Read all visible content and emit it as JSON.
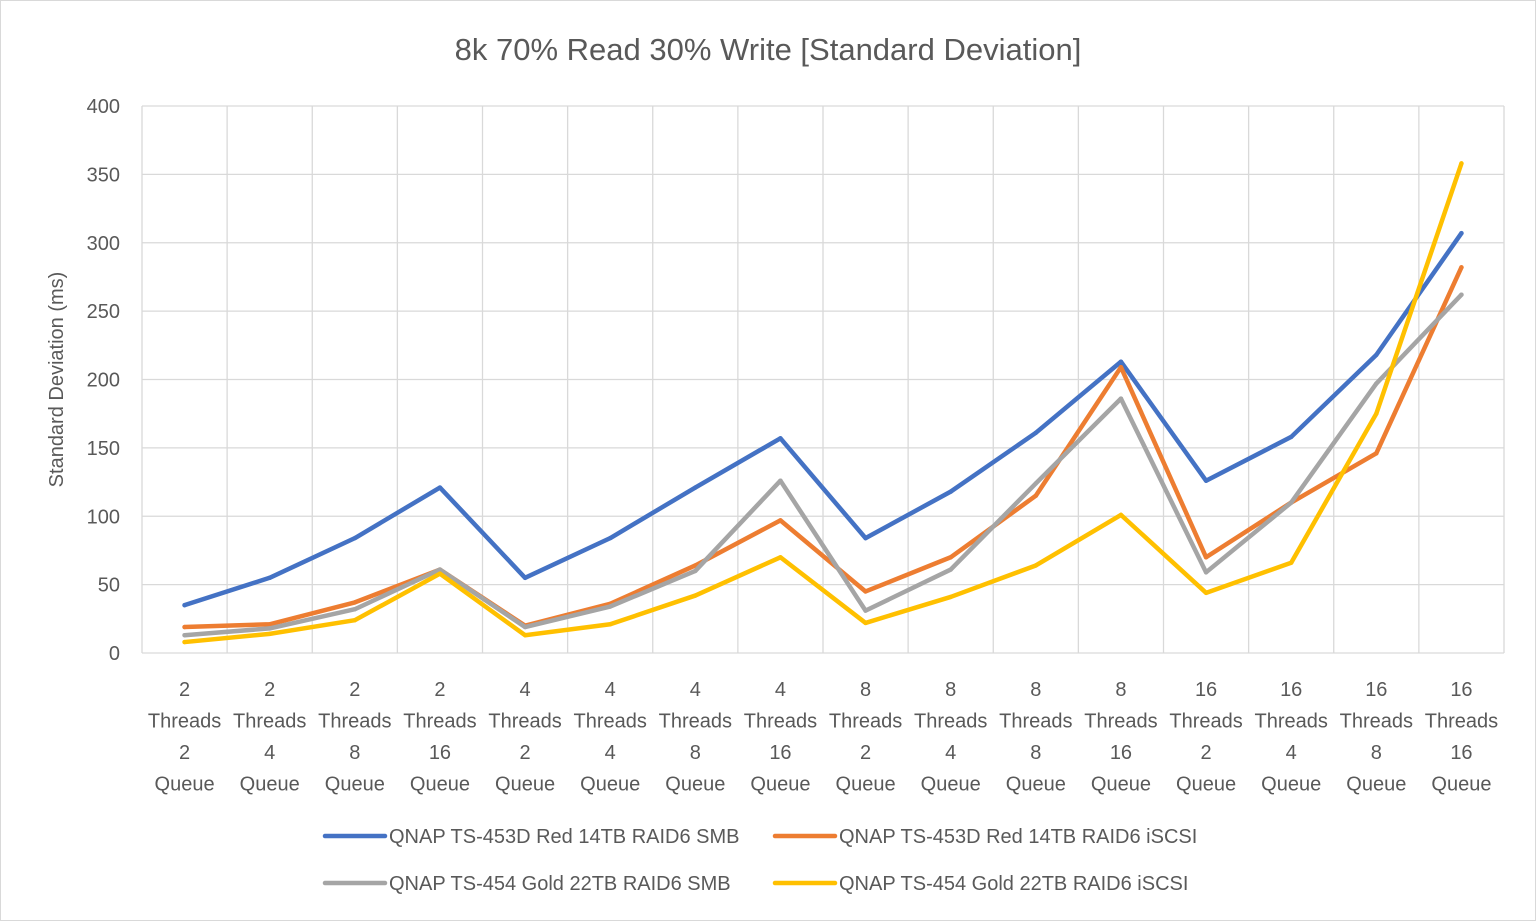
{
  "chart_data": {
    "type": "line",
    "title": "8k 70% Read 30% Write [Standard Deviation]",
    "xlabel": "",
    "ylabel": "Standard Deviation (ms)",
    "ylim": [
      0,
      400
    ],
    "yticks": [
      0,
      50,
      100,
      150,
      200,
      250,
      300,
      350,
      400
    ],
    "grid": true,
    "legend_position": "bottom",
    "categories": [
      [
        "2",
        "Threads",
        "2",
        "Queue"
      ],
      [
        "2",
        "Threads",
        "4",
        "Queue"
      ],
      [
        "2",
        "Threads",
        "8",
        "Queue"
      ],
      [
        "2",
        "Threads",
        "16",
        "Queue"
      ],
      [
        "4",
        "Threads",
        "2",
        "Queue"
      ],
      [
        "4",
        "Threads",
        "4",
        "Queue"
      ],
      [
        "4",
        "Threads",
        "8",
        "Queue"
      ],
      [
        "4",
        "Threads",
        "16",
        "Queue"
      ],
      [
        "8",
        "Threads",
        "2",
        "Queue"
      ],
      [
        "8",
        "Threads",
        "4",
        "Queue"
      ],
      [
        "8",
        "Threads",
        "8",
        "Queue"
      ],
      [
        "8",
        "Threads",
        "16",
        "Queue"
      ],
      [
        "16",
        "Threads",
        "2",
        "Queue"
      ],
      [
        "16",
        "Threads",
        "4",
        "Queue"
      ],
      [
        "16",
        "Threads",
        "8",
        "Queue"
      ],
      [
        "16",
        "Threads",
        "16",
        "Queue"
      ]
    ],
    "series": [
      {
        "name": "QNAP TS-453D Red 14TB RAID6 SMB",
        "color": "#4472c4",
        "values": [
          35,
          55,
          84,
          121,
          55,
          84,
          121,
          157,
          84,
          118,
          161,
          213,
          126,
          158,
          218,
          307
        ]
      },
      {
        "name": "QNAP TS-453D Red 14TB RAID6 iSCSI",
        "color": "#ed7d31",
        "values": [
          19,
          21,
          37,
          61,
          20,
          36,
          64,
          97,
          45,
          70,
          115,
          209,
          70,
          110,
          146,
          282
        ]
      },
      {
        "name": "QNAP TS-454 Gold 22TB RAID6 SMB",
        "color": "#a5a5a5",
        "values": [
          13,
          18,
          32,
          61,
          19,
          34,
          60,
          126,
          31,
          61,
          124,
          186,
          59,
          110,
          197,
          262
        ]
      },
      {
        "name": "QNAP TS-454 Gold 22TB RAID6 iSCSI",
        "color": "#ffc000",
        "values": [
          8,
          14,
          24,
          58,
          13,
          21,
          42,
          70,
          22,
          41,
          64,
          101,
          44,
          66,
          175,
          358
        ]
      }
    ]
  }
}
